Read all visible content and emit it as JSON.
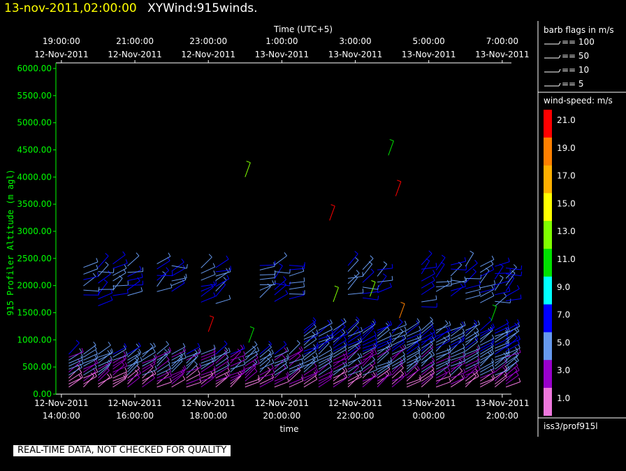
{
  "header": {
    "date_time": "13-nov-2011,02:00:00",
    "plot_name": "XYWind:915winds."
  },
  "warning": "REAL-TIME DATA, NOT CHECKED FOR QUALITY",
  "legend": {
    "barb_title": "barb flags in m/s",
    "barb_items": [
      "== 100",
      "== 50",
      "== 10",
      "== 5"
    ],
    "speed_title": "wind-speed: m/s",
    "speed_scale": [
      {
        "label": "21.0",
        "color": "#ff0000"
      },
      {
        "label": "19.0",
        "color": "#ff8000"
      },
      {
        "label": "17.0",
        "color": "#ffb000"
      },
      {
        "label": "15.0",
        "color": "#ffff00"
      },
      {
        "label": "13.0",
        "color": "#80ff00"
      },
      {
        "label": "11.0",
        "color": "#00e000"
      },
      {
        "label": "9.0",
        "color": "#00ffff"
      },
      {
        "label": "7.0",
        "color": "#0000ff"
      },
      {
        "label": "5.0",
        "color": "#6699ee"
      },
      {
        "label": "3.0",
        "color": "#9900cc"
      },
      {
        "label": "1.0",
        "color": "#ee77dd"
      }
    ],
    "source": "iss3/prof915l"
  },
  "chart_data": {
    "type": "scatter",
    "subtype": "wind-barbs",
    "title": "XYWind:915winds.",
    "xlabel": "time",
    "x2label": "Time (UTC+5)",
    "ylabel": "915 Profiler Altitude (m agl)",
    "ylim": [
      0,
      6000
    ],
    "xlim_hours": [
      13.85,
      26.25
    ],
    "x_ticks": [
      {
        "hour": 14,
        "line1": "12-Nov-2011",
        "line2": "14:00:00"
      },
      {
        "hour": 16,
        "line1": "12-Nov-2011",
        "line2": "16:00:00"
      },
      {
        "hour": 18,
        "line1": "12-Nov-2011",
        "line2": "18:00:00"
      },
      {
        "hour": 20,
        "line1": "12-Nov-2011",
        "line2": "20:00:00"
      },
      {
        "hour": 22,
        "line1": "12-Nov-2011",
        "line2": "22:00:00"
      },
      {
        "hour": 24,
        "line1": "13-Nov-2011",
        "line2": "0:00:00"
      },
      {
        "hour": 26,
        "line1": "13-Nov-2011",
        "line2": "2:00:00"
      }
    ],
    "x2_ticks": [
      {
        "hour": 14,
        "line1": "19:00:00",
        "line2": "12-Nov-2011"
      },
      {
        "hour": 16,
        "line1": "21:00:00",
        "line2": "12-Nov-2011"
      },
      {
        "hour": 18,
        "line1": "23:00:00",
        "line2": "12-Nov-2011"
      },
      {
        "hour": 20,
        "line1": "1:00:00",
        "line2": "13-Nov-2011"
      },
      {
        "hour": 22,
        "line1": "3:00:00",
        "line2": "13-Nov-2011"
      },
      {
        "hour": 24,
        "line1": "5:00:00",
        "line2": "13-Nov-2011"
      },
      {
        "hour": 26,
        "line1": "7:00:00",
        "line2": "13-Nov-2011"
      }
    ],
    "y_ticks": [
      "0.00",
      "500.00",
      "1000.00",
      "1500.00",
      "2000.00",
      "2500.00",
      "3000.00",
      "3500.00",
      "4000.00",
      "4500.00",
      "5000.00",
      "5500.00",
      "6000.00"
    ],
    "profile_times": [
      14.2,
      14.6,
      15.0,
      15.4,
      15.8,
      16.2,
      16.6,
      17.0,
      17.4,
      17.8,
      18.2,
      18.6,
      19.0,
      19.4,
      19.8,
      20.2,
      20.6,
      21.0,
      21.4,
      21.8,
      22.2,
      22.6,
      23.0,
      23.4,
      23.8,
      24.2,
      24.6,
      25.0,
      25.4,
      25.8,
      26.1
    ],
    "highlight_barbs": [
      {
        "t": 19.0,
        "alt": 4000,
        "speed": 13
      },
      {
        "t": 21.3,
        "alt": 3200,
        "speed": 21
      },
      {
        "t": 18.0,
        "alt": 1150,
        "speed": 21
      },
      {
        "t": 23.1,
        "alt": 3650,
        "speed": 21
      },
      {
        "t": 22.9,
        "alt": 4400,
        "speed": 11
      },
      {
        "t": 23.2,
        "alt": 1400,
        "speed": 19
      },
      {
        "t": 25.7,
        "alt": 1350,
        "speed": 11
      },
      {
        "t": 19.1,
        "alt": 950,
        "speed": 11
      },
      {
        "t": 21.4,
        "alt": 1700,
        "speed": 13
      },
      {
        "t": 22.4,
        "alt": 1800,
        "speed": 13
      }
    ]
  }
}
